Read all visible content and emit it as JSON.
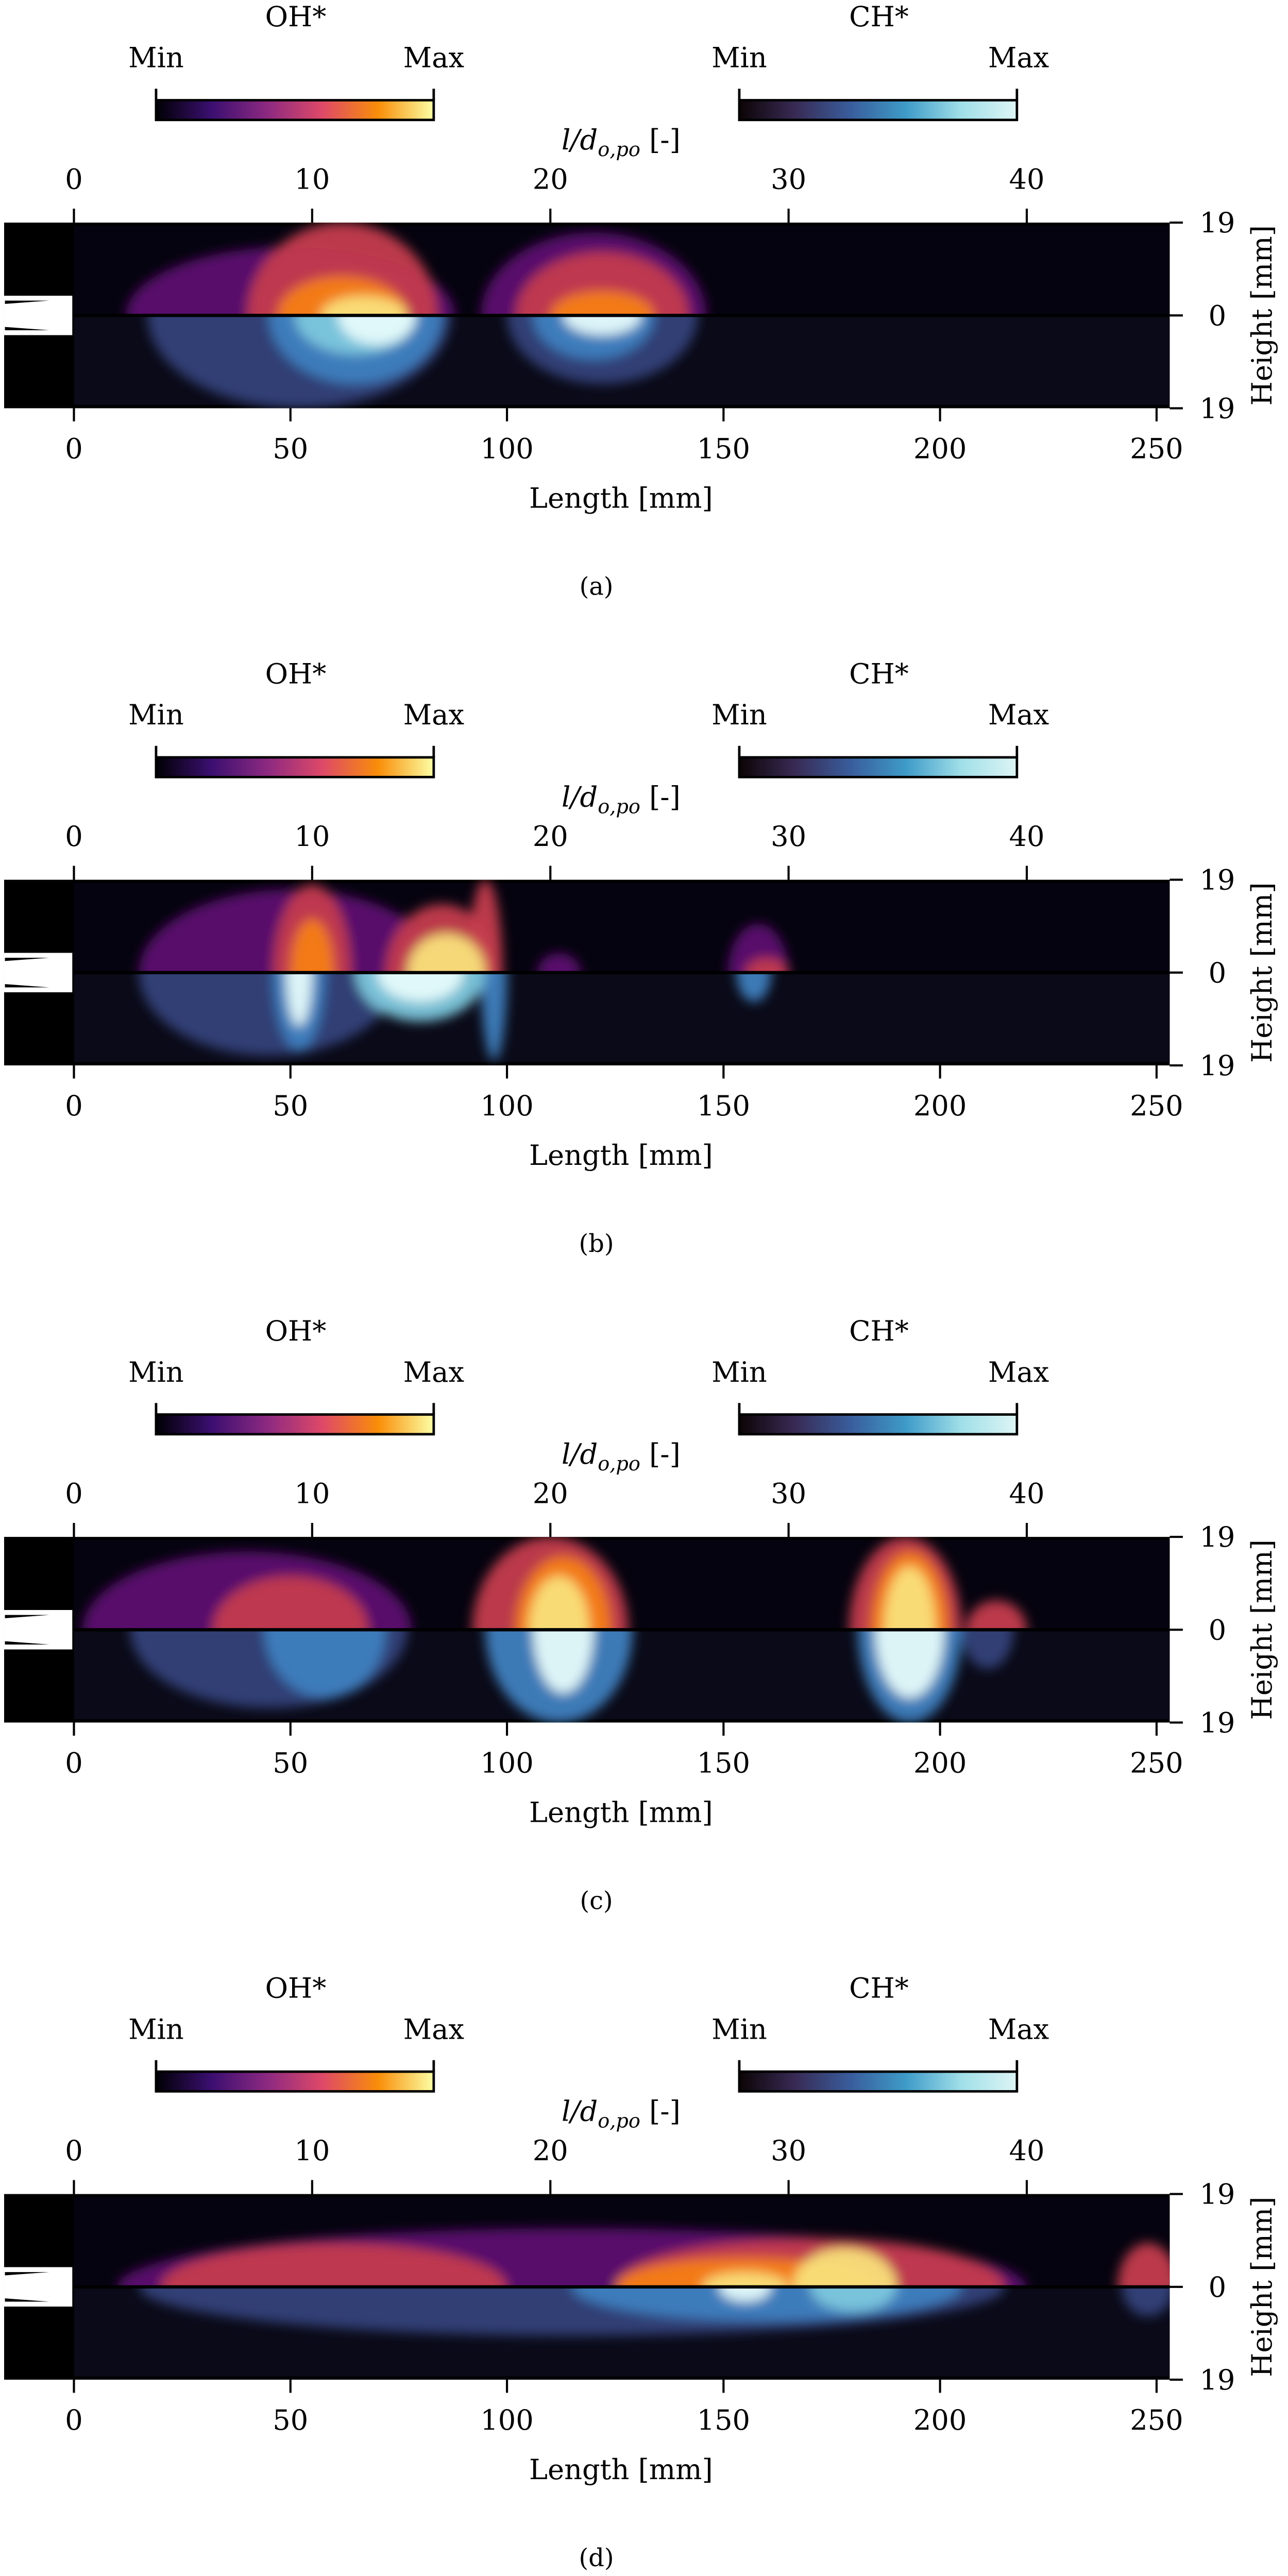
{
  "figure": {
    "legend": {
      "oh_title": "OH*",
      "ch_title": "CH*",
      "min_label": "Min",
      "max_label": "Max",
      "oh_colors": [
        "#000004",
        "#3b0f70",
        "#8c2981",
        "#de4968",
        "#f98e09",
        "#fcffa4"
      ],
      "ch_colors": [
        "#0b0405",
        "#382a54",
        "#395d9c",
        "#3e9bc8",
        "#a0dfe8",
        "#def5f5"
      ]
    },
    "top_axis_label": "l/d_o,po [-]",
    "top_axis_label_main": "l/d",
    "top_axis_label_sub": "o,po",
    "top_axis_label_unit": " [-]",
    "top_ticks": [
      "0",
      "10",
      "20",
      "30",
      "40"
    ],
    "bottom_ticks": [
      "0",
      "50",
      "100",
      "150",
      "200",
      "250"
    ],
    "xlabel": "Length [mm]",
    "ylabel": "Height [mm]",
    "right_ticks": [
      "19",
      "0",
      "19"
    ]
  },
  "chart_data": [
    {
      "type": "heatmap",
      "panel": "(a)",
      "upper": "OH*",
      "lower": "CH*",
      "xlabel": "Length [mm]",
      "ylabel": "Height [mm]",
      "xlim": [
        0,
        253
      ],
      "ylim": [
        -19,
        19
      ],
      "top_xlim": [
        0,
        43.6
      ],
      "flame_extent_mm": [
        10,
        150
      ]
    },
    {
      "type": "heatmap",
      "panel": "(b)",
      "upper": "OH*",
      "lower": "CH*",
      "xlabel": "Length [mm]",
      "ylabel": "Height [mm]",
      "xlim": [
        0,
        253
      ],
      "ylim": [
        -19,
        19
      ],
      "top_xlim": [
        0,
        43.6
      ],
      "flame_extent_mm": [
        10,
        168
      ]
    },
    {
      "type": "heatmap",
      "panel": "(c)",
      "upper": "OH*",
      "lower": "CH*",
      "xlabel": "Length [mm]",
      "ylabel": "Height [mm]",
      "xlim": [
        0,
        253
      ],
      "ylim": [
        -19,
        19
      ],
      "top_xlim": [
        0,
        43.6
      ],
      "flame_extent_mm": [
        5,
        220
      ]
    },
    {
      "type": "heatmap",
      "panel": "(d)",
      "upper": "OH*",
      "lower": "CH*",
      "xlabel": "Length [mm]",
      "ylabel": "Height [mm]",
      "xlim": [
        0,
        253
      ],
      "ylim": [
        -19,
        19
      ],
      "top_xlim": [
        0,
        43.6
      ],
      "flame_extent_mm": [
        5,
        253
      ]
    }
  ]
}
